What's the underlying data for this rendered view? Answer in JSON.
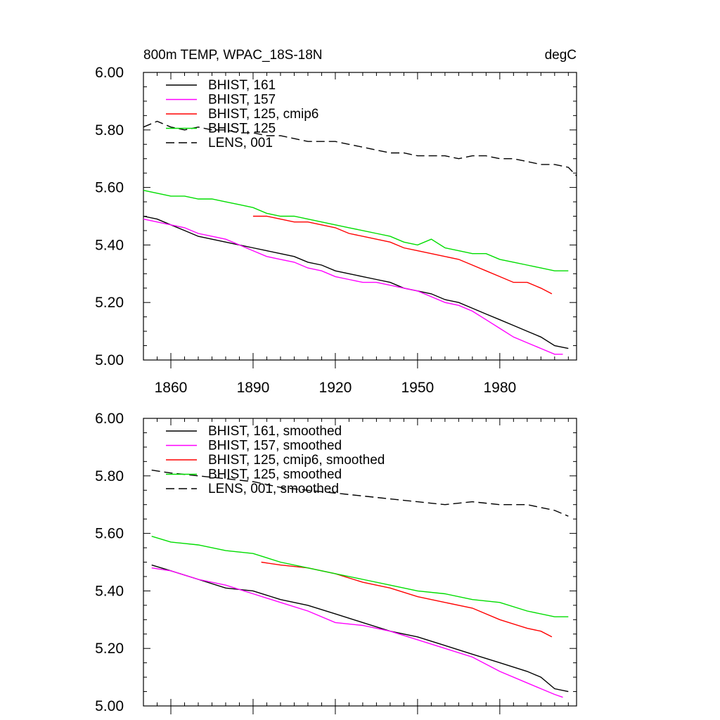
{
  "figure": {
    "title_left": "800m TEMP, WPAC_18S-18N",
    "title_right": "degC"
  },
  "chart_data": [
    {
      "type": "line",
      "panel": "top",
      "xlim": [
        1850,
        2008
      ],
      "ylim": [
        5.0,
        6.0
      ],
      "x_ticks": [
        1860,
        1890,
        1920,
        1950,
        1980
      ],
      "x_tick_labels": [
        "1860",
        "1890",
        "1920",
        "1950",
        "1980"
      ],
      "y_ticks": [
        5.0,
        5.2,
        5.4,
        5.6,
        5.8,
        6.0
      ],
      "y_tick_labels": [
        "5.00",
        "5.20",
        "5.40",
        "5.60",
        "5.80",
        "6.00"
      ],
      "legend_position": "top-left",
      "series": [
        {
          "name": "BHIST, 161",
          "color": "#000000",
          "dash": "solid",
          "x": [
            1850,
            1855,
            1860,
            1865,
            1870,
            1875,
            1880,
            1885,
            1890,
            1895,
            1900,
            1905,
            1910,
            1915,
            1920,
            1925,
            1930,
            1935,
            1940,
            1945,
            1950,
            1955,
            1960,
            1965,
            1970,
            1975,
            1980,
            1985,
            1990,
            1995,
            2000,
            2005
          ],
          "y": [
            5.5,
            5.49,
            5.47,
            5.45,
            5.43,
            5.42,
            5.41,
            5.4,
            5.39,
            5.38,
            5.37,
            5.36,
            5.34,
            5.33,
            5.31,
            5.3,
            5.29,
            5.28,
            5.27,
            5.25,
            5.24,
            5.23,
            5.21,
            5.2,
            5.18,
            5.16,
            5.14,
            5.12,
            5.1,
            5.08,
            5.05,
            5.04
          ]
        },
        {
          "name": "BHIST, 157",
          "color": "#ff00ff",
          "dash": "solid",
          "x": [
            1850,
            1855,
            1860,
            1865,
            1870,
            1875,
            1880,
            1885,
            1890,
            1895,
            1900,
            1905,
            1910,
            1915,
            1920,
            1925,
            1930,
            1935,
            1940,
            1945,
            1950,
            1955,
            1960,
            1965,
            1970,
            1975,
            1980,
            1985,
            1990,
            1995,
            2000,
            2003
          ],
          "y": [
            5.49,
            5.48,
            5.47,
            5.46,
            5.44,
            5.43,
            5.42,
            5.4,
            5.38,
            5.36,
            5.35,
            5.34,
            5.32,
            5.31,
            5.29,
            5.28,
            5.27,
            5.27,
            5.26,
            5.25,
            5.24,
            5.22,
            5.2,
            5.19,
            5.17,
            5.14,
            5.11,
            5.08,
            5.06,
            5.04,
            5.02,
            5.02
          ]
        },
        {
          "name": "BHIST, 125, cmip6",
          "color": "#ff0000",
          "dash": "solid",
          "x": [
            1890,
            1895,
            1900,
            1905,
            1910,
            1915,
            1920,
            1925,
            1930,
            1935,
            1940,
            1945,
            1950,
            1955,
            1960,
            1965,
            1970,
            1975,
            1980,
            1985,
            1990,
            1995,
            1999
          ],
          "y": [
            5.5,
            5.5,
            5.49,
            5.48,
            5.48,
            5.47,
            5.46,
            5.44,
            5.43,
            5.42,
            5.41,
            5.39,
            5.38,
            5.37,
            5.36,
            5.35,
            5.33,
            5.31,
            5.29,
            5.27,
            5.27,
            5.25,
            5.23
          ]
        },
        {
          "name": "BHIST, 125",
          "color": "#00dd00",
          "dash": "solid",
          "x": [
            1850,
            1855,
            1860,
            1865,
            1870,
            1875,
            1880,
            1885,
            1890,
            1895,
            1900,
            1905,
            1910,
            1915,
            1920,
            1925,
            1930,
            1935,
            1940,
            1945,
            1950,
            1955,
            1960,
            1965,
            1970,
            1975,
            1980,
            1985,
            1990,
            1995,
            2000,
            2005
          ],
          "y": [
            5.59,
            5.58,
            5.57,
            5.57,
            5.56,
            5.56,
            5.55,
            5.54,
            5.53,
            5.51,
            5.5,
            5.5,
            5.49,
            5.48,
            5.47,
            5.46,
            5.45,
            5.44,
            5.43,
            5.41,
            5.4,
            5.42,
            5.39,
            5.38,
            5.37,
            5.37,
            5.35,
            5.34,
            5.33,
            5.32,
            5.31,
            5.31
          ]
        },
        {
          "name": "LENS, 001",
          "color": "#000000",
          "dash": "dashed",
          "x": [
            1850,
            1855,
            1860,
            1865,
            1870,
            1875,
            1880,
            1885,
            1890,
            1895,
            1900,
            1905,
            1910,
            1915,
            1920,
            1925,
            1930,
            1935,
            1940,
            1945,
            1950,
            1955,
            1960,
            1965,
            1970,
            1975,
            1980,
            1985,
            1990,
            1995,
            2000,
            2005,
            2008
          ],
          "y": [
            5.81,
            5.83,
            5.81,
            5.8,
            5.81,
            5.8,
            5.8,
            5.79,
            5.79,
            5.78,
            5.78,
            5.77,
            5.76,
            5.76,
            5.76,
            5.75,
            5.74,
            5.73,
            5.72,
            5.72,
            5.71,
            5.71,
            5.71,
            5.7,
            5.71,
            5.71,
            5.7,
            5.7,
            5.69,
            5.68,
            5.68,
            5.67,
            5.64
          ]
        }
      ]
    },
    {
      "type": "line",
      "panel": "bottom",
      "xlim": [
        1850,
        2008
      ],
      "ylim": [
        5.0,
        6.0
      ],
      "x_ticks": [
        1860,
        1890,
        1920,
        1950,
        1980
      ],
      "y_ticks": [
        5.0,
        5.2,
        5.4,
        5.6,
        5.8,
        6.0
      ],
      "y_tick_labels": [
        "5.00",
        "5.20",
        "5.40",
        "5.60",
        "5.80",
        "6.00"
      ],
      "legend_position": "top-left",
      "series": [
        {
          "name": "BHIST, 161, smoothed",
          "color": "#000000",
          "dash": "solid",
          "x": [
            1853,
            1860,
            1870,
            1880,
            1890,
            1900,
            1910,
            1920,
            1930,
            1940,
            1950,
            1960,
            1970,
            1980,
            1990,
            1995,
            2000,
            2005
          ],
          "y": [
            5.49,
            5.47,
            5.44,
            5.41,
            5.4,
            5.37,
            5.35,
            5.32,
            5.29,
            5.26,
            5.24,
            5.21,
            5.18,
            5.15,
            5.12,
            5.1,
            5.06,
            5.05
          ]
        },
        {
          "name": "BHIST, 157, smoothed",
          "color": "#ff00ff",
          "dash": "solid",
          "x": [
            1853,
            1860,
            1870,
            1880,
            1890,
            1900,
            1910,
            1920,
            1930,
            1940,
            1950,
            1960,
            1970,
            1980,
            1990,
            1995,
            2000,
            2003
          ],
          "y": [
            5.48,
            5.47,
            5.44,
            5.42,
            5.39,
            5.36,
            5.33,
            5.29,
            5.28,
            5.26,
            5.23,
            5.2,
            5.17,
            5.12,
            5.08,
            5.06,
            5.04,
            5.03
          ]
        },
        {
          "name": "BHIST, 125, cmip6, smoothed",
          "color": "#ff0000",
          "dash": "solid",
          "x": [
            1893,
            1900,
            1910,
            1920,
            1930,
            1940,
            1950,
            1960,
            1970,
            1980,
            1990,
            1995,
            1999
          ],
          "y": [
            5.5,
            5.49,
            5.48,
            5.46,
            5.43,
            5.41,
            5.38,
            5.36,
            5.34,
            5.3,
            5.27,
            5.26,
            5.24
          ]
        },
        {
          "name": "BHIST, 125, smoothed",
          "color": "#00dd00",
          "dash": "solid",
          "x": [
            1853,
            1860,
            1870,
            1880,
            1890,
            1900,
            1910,
            1920,
            1930,
            1940,
            1950,
            1960,
            1970,
            1980,
            1990,
            2000,
            2005
          ],
          "y": [
            5.59,
            5.57,
            5.56,
            5.54,
            5.53,
            5.5,
            5.48,
            5.46,
            5.44,
            5.42,
            5.4,
            5.39,
            5.37,
            5.36,
            5.33,
            5.31,
            5.31
          ]
        },
        {
          "name": "LENS, 001, smoothed",
          "color": "#000000",
          "dash": "dashed",
          "x": [
            1853,
            1860,
            1870,
            1880,
            1890,
            1900,
            1910,
            1920,
            1930,
            1940,
            1950,
            1960,
            1970,
            1980,
            1990,
            2000,
            2005
          ],
          "y": [
            5.82,
            5.81,
            5.8,
            5.79,
            5.78,
            5.76,
            5.75,
            5.74,
            5.73,
            5.72,
            5.71,
            5.7,
            5.71,
            5.7,
            5.7,
            5.68,
            5.66
          ]
        }
      ]
    }
  ]
}
